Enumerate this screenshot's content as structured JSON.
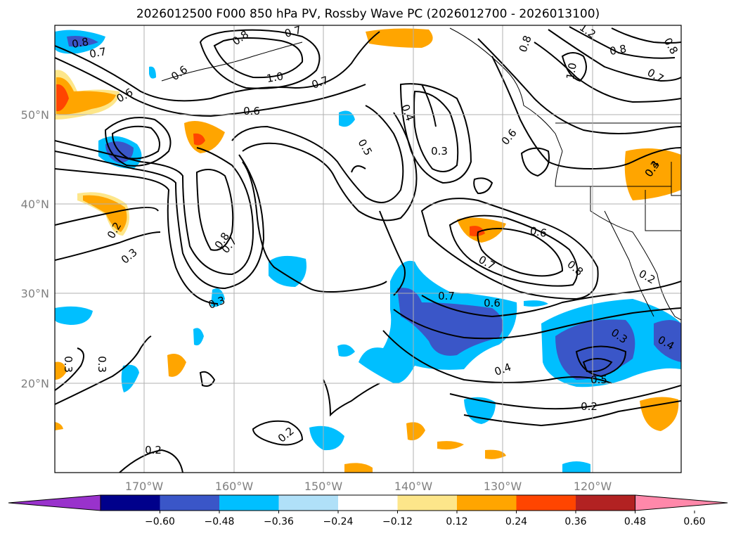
{
  "title": "2026012500 F000 850 hPa PV, Rossby Wave PC (2026012700 - 2026013100)",
  "map": {
    "lon_labels": [
      "170°W",
      "160°W",
      "150°W",
      "140°W",
      "130°W",
      "120°W"
    ],
    "lat_labels": [
      "50°N",
      "40°N",
      "30°N",
      "20°N"
    ],
    "contour_labels": [
      "0.8",
      "0.7",
      "0.6",
      "1.0",
      "0.7",
      "0.6",
      "0.8",
      "0.7",
      "0.8",
      "1.2",
      "0.8",
      "0.7",
      "1.0",
      "0.8",
      "0.6",
      "0.4",
      "0.5",
      "0.3",
      "0.6",
      "0.3",
      "0.2",
      "0.3",
      "0.8",
      "0.7",
      "0.3",
      "0.6",
      "0.7",
      "0.6",
      "0.7",
      "0.8",
      "0.2",
      "0.4",
      "0.3",
      "0.4",
      "0.5",
      "0.2",
      "0.2",
      "0.2",
      "0.3",
      "0.3",
      "0.4"
    ]
  },
  "colorbar": {
    "ticks": [
      "−0.60",
      "−0.48",
      "−0.36",
      "−0.24",
      "−0.12",
      "0.12",
      "0.24",
      "0.36",
      "0.48",
      "0.60"
    ],
    "colors": [
      "#9932cc",
      "#00008b",
      "#3a56c8",
      "#00bfff",
      "#b0e0f8",
      "#ffffff",
      "#fde68a",
      "#ffa500",
      "#ff4500",
      "#b22222",
      "#ff88aa"
    ]
  }
}
